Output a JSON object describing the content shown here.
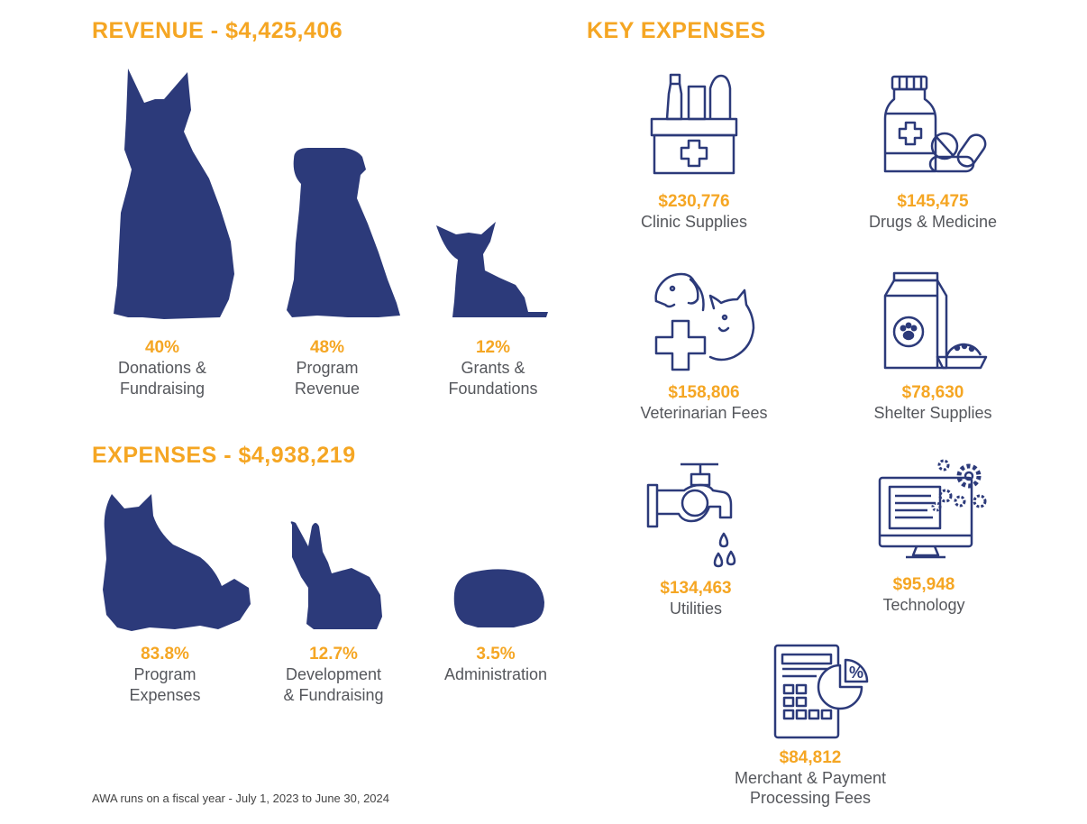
{
  "colors": {
    "accent": "#f5a623",
    "silhouette": "#2c3a7a",
    "text": "#55575c"
  },
  "revenue": {
    "heading": "REVENUE - $4,425,406",
    "items": [
      {
        "icon": "german-shepherd-silhouette-icon",
        "pct": "40%",
        "label_line1": "Donations &",
        "label_line2": "Fundraising"
      },
      {
        "icon": "puppy-silhouette-icon",
        "pct": "48%",
        "label_line1": "Program",
        "label_line2": "Revenue"
      },
      {
        "icon": "chihuahua-silhouette-icon",
        "pct": "12%",
        "label_line1": "Grants &",
        "label_line2": "Foundations"
      }
    ]
  },
  "expenses": {
    "heading": "EXPENSES - $4,938,219",
    "items": [
      {
        "icon": "cat-silhouette-icon",
        "pct": "83.8%",
        "label_line1": "Program",
        "label_line2": "Expenses"
      },
      {
        "icon": "rabbit-silhouette-icon",
        "pct": "12.7%",
        "label_line1": "Development",
        "label_line2": "& Fundraising"
      },
      {
        "icon": "guinea-pig-silhouette-icon",
        "pct": "3.5%",
        "label_line1": "Administration",
        "label_line2": ""
      }
    ]
  },
  "key_expenses": {
    "heading": "KEY EXPENSES",
    "items": [
      {
        "icon": "clinic-supplies-icon",
        "amount": "$230,776",
        "label_line1": "Clinic Supplies",
        "label_line2": ""
      },
      {
        "icon": "drugs-medicine-icon",
        "amount": "$145,475",
        "label_line1": "Drugs & Medicine",
        "label_line2": ""
      },
      {
        "icon": "veterinarian-icon",
        "amount": "$158,806",
        "label_line1": "Veterinarian Fees",
        "label_line2": ""
      },
      {
        "icon": "pet-food-icon",
        "amount": "$78,630",
        "label_line1": "Shelter Supplies",
        "label_line2": ""
      },
      {
        "icon": "faucet-icon",
        "amount": "$134,463",
        "label_line1": "Utilities",
        "label_line2": ""
      },
      {
        "icon": "computer-gears-icon",
        "amount": "$95,948",
        "label_line1": "Technology",
        "label_line2": ""
      },
      {
        "icon": "calculator-pie-icon",
        "amount": "$84,812",
        "label_line1": "Merchant & Payment",
        "label_line2": "Processing Fees"
      }
    ]
  },
  "footnote": "AWA runs on a fiscal year - July 1, 2023 to June 30, 2024"
}
